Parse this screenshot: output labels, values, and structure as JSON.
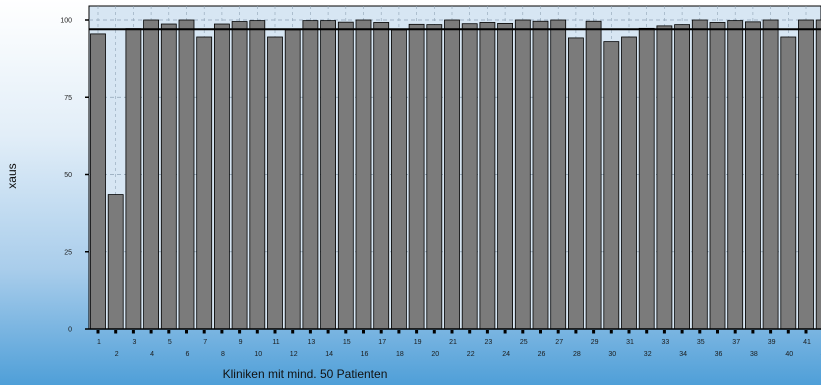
{
  "chart_data": {
    "type": "bar",
    "title": "",
    "xlabel": "Kliniken mit mind. 50 Patienten",
    "ylabel": "xaus",
    "ylim": [
      0,
      100
    ],
    "yticks": [
      0,
      25,
      50,
      75,
      100
    ],
    "reference_line": 97,
    "grid": true,
    "legend": "none",
    "categories": [
      "1",
      "2",
      "3",
      "4",
      "5",
      "6",
      "7",
      "8",
      "9",
      "10",
      "11",
      "12",
      "13",
      "14",
      "15",
      "16",
      "17",
      "18",
      "19",
      "20",
      "21",
      "22",
      "23",
      "24",
      "25",
      "26",
      "27",
      "28",
      "29",
      "30",
      "31",
      "32",
      "33",
      "34",
      "35",
      "36",
      "37",
      "38",
      "39",
      "40",
      "41",
      "42",
      "43"
    ],
    "values": [
      95.5,
      43.5,
      97.2,
      100,
      98.7,
      100,
      94.5,
      98.7,
      99.5,
      99.8,
      94.5,
      96.8,
      99.8,
      99.8,
      99.3,
      100,
      99.2,
      96.8,
      98.6,
      98.5,
      100,
      98.8,
      99.2,
      98.9,
      100,
      99.6,
      100,
      94.2,
      99.6,
      93,
      94.5,
      97.3,
      98.1,
      98.5,
      100,
      99.2,
      99.8,
      99.4,
      100,
      94.5,
      100,
      100,
      97
    ],
    "colors": {
      "bar_fill": "#7b7b7b",
      "bar_stroke": "#000000",
      "plot_background": "#d7e6f3",
      "reference_line": "#000000",
      "grid": "#8fa3b5"
    }
  }
}
